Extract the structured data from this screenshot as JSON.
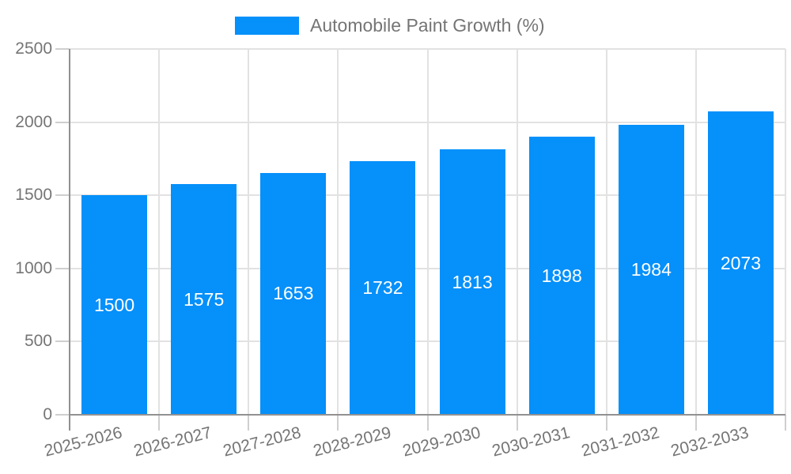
{
  "legend": {
    "label": "Automobile Paint Growth (%)"
  },
  "chart_data": {
    "type": "bar",
    "title": "",
    "categories": [
      "2025-2026",
      "2026-2027",
      "2027-2028",
      "2028-2029",
      "2029-2030",
      "2030-2031",
      "2031-2032",
      "2032-2033"
    ],
    "series": [
      {
        "name": "Automobile Paint Growth (%)",
        "values": [
          1500,
          1575,
          1653,
          1732,
          1813,
          1898,
          1984,
          2073
        ]
      }
    ],
    "values": [
      1500,
      1575,
      1653,
      1732,
      1813,
      1898,
      1984,
      2073
    ],
    "value_labels": [
      "1500",
      "1575",
      "1653",
      "1732",
      "1813",
      "1898",
      "1984",
      "2073"
    ],
    "xlabel": "",
    "ylabel": "",
    "ylim": [
      0,
      2500
    ],
    "yticks": [
      0,
      500,
      1000,
      1500,
      2000,
      2500
    ],
    "ytick_labels": [
      "0",
      "500",
      "1000",
      "1500",
      "2000",
      "2500"
    ],
    "grid": true,
    "legend_position": "top",
    "colors": {
      "bar": "#0590fa",
      "bar_value_label": "#ffffff",
      "axis_line": "#919191",
      "grid_line": "#e2e2e2",
      "tick_mark": "#cfcfcf",
      "tick_label": "#757575",
      "background": "#ffffff"
    }
  }
}
